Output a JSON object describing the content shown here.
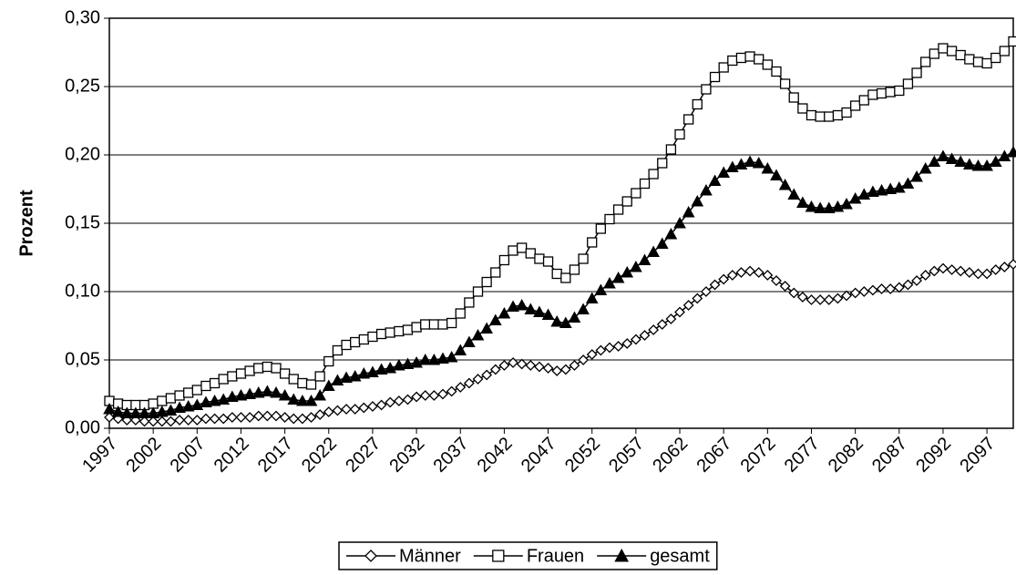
{
  "chart_data": {
    "type": "line",
    "y_label": "Prozent",
    "x": [
      1997,
      1998,
      1999,
      2000,
      2001,
      2002,
      2003,
      2004,
      2005,
      2006,
      2007,
      2008,
      2009,
      2010,
      2011,
      2012,
      2013,
      2014,
      2015,
      2016,
      2017,
      2018,
      2019,
      2020,
      2021,
      2022,
      2023,
      2024,
      2025,
      2026,
      2027,
      2028,
      2029,
      2030,
      2031,
      2032,
      2033,
      2034,
      2035,
      2036,
      2037,
      2038,
      2039,
      2040,
      2041,
      2042,
      2043,
      2044,
      2045,
      2046,
      2047,
      2048,
      2049,
      2050,
      2051,
      2052,
      2053,
      2054,
      2055,
      2056,
      2057,
      2058,
      2059,
      2060,
      2061,
      2062,
      2063,
      2064,
      2065,
      2066,
      2067,
      2068,
      2069,
      2070,
      2071,
      2072,
      2073,
      2074,
      2075,
      2076,
      2077,
      2078,
      2079,
      2080,
      2081,
      2082,
      2083,
      2084,
      2085,
      2086,
      2087,
      2088,
      2089,
      2090,
      2091,
      2092,
      2093,
      2094,
      2095,
      2096,
      2097,
      2098,
      2099,
      2100
    ],
    "xlim": [
      1997,
      2100
    ],
    "xticks": [
      1997,
      2002,
      2007,
      2012,
      2017,
      2022,
      2027,
      2032,
      2037,
      2042,
      2047,
      2052,
      2057,
      2062,
      2067,
      2072,
      2077,
      2082,
      2087,
      2092,
      2097
    ],
    "ylim": [
      0,
      0.3
    ],
    "yticks": [
      {
        "value": 0,
        "label": "0,00"
      },
      {
        "value": 0.05,
        "label": "0,05"
      },
      {
        "value": 0.1,
        "label": "0,10"
      },
      {
        "value": 0.15,
        "label": "0,15"
      },
      {
        "value": 0.2,
        "label": "0,20"
      },
      {
        "value": 0.25,
        "label": "0,25"
      },
      {
        "value": 0.3,
        "label": "0,30"
      }
    ],
    "grid": true,
    "legend": "bottom",
    "series": [
      {
        "name": "Männer",
        "color": "#000000",
        "marker": "diamond-open",
        "values": [
          0.008,
          0.007,
          0.006,
          0.006,
          0.005,
          0.005,
          0.005,
          0.005,
          0.006,
          0.006,
          0.006,
          0.007,
          0.007,
          0.007,
          0.008,
          0.008,
          0.008,
          0.009,
          0.009,
          0.009,
          0.008,
          0.007,
          0.007,
          0.008,
          0.01,
          0.012,
          0.013,
          0.014,
          0.014,
          0.015,
          0.016,
          0.017,
          0.019,
          0.02,
          0.021,
          0.023,
          0.024,
          0.024,
          0.025,
          0.027,
          0.03,
          0.033,
          0.036,
          0.039,
          0.043,
          0.046,
          0.048,
          0.047,
          0.046,
          0.045,
          0.044,
          0.042,
          0.043,
          0.046,
          0.05,
          0.054,
          0.057,
          0.059,
          0.06,
          0.062,
          0.065,
          0.068,
          0.072,
          0.076,
          0.08,
          0.085,
          0.09,
          0.095,
          0.1,
          0.105,
          0.109,
          0.112,
          0.114,
          0.115,
          0.114,
          0.112,
          0.108,
          0.104,
          0.099,
          0.096,
          0.094,
          0.094,
          0.094,
          0.095,
          0.097,
          0.099,
          0.1,
          0.101,
          0.102,
          0.102,
          0.103,
          0.105,
          0.108,
          0.112,
          0.115,
          0.117,
          0.116,
          0.115,
          0.114,
          0.113,
          0.113,
          0.116,
          0.118,
          0.12
        ]
      },
      {
        "name": "Frauen",
        "color": "#000000",
        "marker": "square-open",
        "values": [
          0.02,
          0.018,
          0.017,
          0.017,
          0.017,
          0.018,
          0.02,
          0.022,
          0.024,
          0.026,
          0.028,
          0.031,
          0.033,
          0.036,
          0.038,
          0.04,
          0.042,
          0.044,
          0.045,
          0.044,
          0.04,
          0.036,
          0.033,
          0.032,
          0.038,
          0.049,
          0.057,
          0.061,
          0.063,
          0.065,
          0.067,
          0.069,
          0.07,
          0.071,
          0.072,
          0.074,
          0.076,
          0.076,
          0.076,
          0.077,
          0.084,
          0.092,
          0.1,
          0.107,
          0.114,
          0.123,
          0.13,
          0.132,
          0.128,
          0.124,
          0.122,
          0.113,
          0.11,
          0.116,
          0.124,
          0.136,
          0.146,
          0.153,
          0.16,
          0.166,
          0.172,
          0.179,
          0.186,
          0.194,
          0.204,
          0.215,
          0.226,
          0.237,
          0.248,
          0.257,
          0.264,
          0.269,
          0.271,
          0.272,
          0.27,
          0.266,
          0.261,
          0.252,
          0.242,
          0.234,
          0.229,
          0.228,
          0.228,
          0.229,
          0.231,
          0.236,
          0.24,
          0.244,
          0.245,
          0.246,
          0.247,
          0.252,
          0.26,
          0.268,
          0.274,
          0.278,
          0.276,
          0.273,
          0.27,
          0.268,
          0.267,
          0.271,
          0.276,
          0.283
        ]
      },
      {
        "name": "gesamt",
        "color": "#000000",
        "marker": "triangle-filled",
        "values": [
          0.014,
          0.012,
          0.011,
          0.011,
          0.011,
          0.011,
          0.012,
          0.013,
          0.015,
          0.016,
          0.017,
          0.019,
          0.02,
          0.021,
          0.023,
          0.024,
          0.025,
          0.026,
          0.027,
          0.026,
          0.024,
          0.021,
          0.02,
          0.02,
          0.024,
          0.031,
          0.035,
          0.037,
          0.038,
          0.04,
          0.041,
          0.043,
          0.044,
          0.046,
          0.047,
          0.048,
          0.05,
          0.05,
          0.051,
          0.052,
          0.057,
          0.063,
          0.068,
          0.073,
          0.079,
          0.084,
          0.089,
          0.09,
          0.087,
          0.085,
          0.083,
          0.078,
          0.077,
          0.081,
          0.087,
          0.095,
          0.101,
          0.106,
          0.11,
          0.114,
          0.118,
          0.123,
          0.129,
          0.135,
          0.142,
          0.15,
          0.158,
          0.166,
          0.174,
          0.181,
          0.187,
          0.191,
          0.193,
          0.195,
          0.194,
          0.19,
          0.185,
          0.178,
          0.171,
          0.165,
          0.162,
          0.161,
          0.161,
          0.162,
          0.164,
          0.168,
          0.171,
          0.173,
          0.174,
          0.175,
          0.176,
          0.179,
          0.184,
          0.19,
          0.195,
          0.199,
          0.197,
          0.195,
          0.193,
          0.192,
          0.192,
          0.195,
          0.199,
          0.202
        ]
      }
    ]
  }
}
